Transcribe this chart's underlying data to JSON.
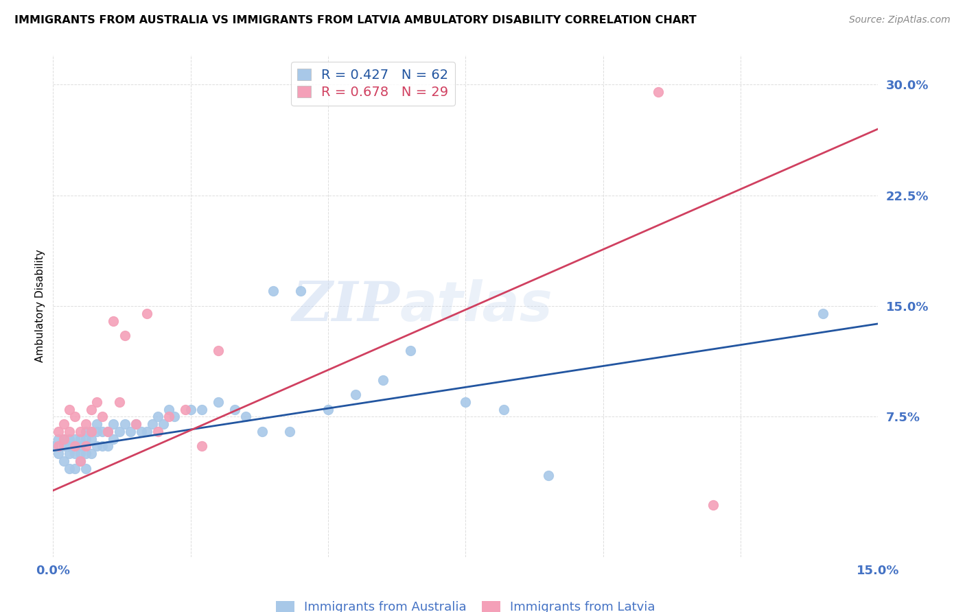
{
  "title": "IMMIGRANTS FROM AUSTRALIA VS IMMIGRANTS FROM LATVIA AMBULATORY DISABILITY CORRELATION CHART",
  "source": "Source: ZipAtlas.com",
  "ylabel": "Ambulatory Disability",
  "xlabel": "",
  "xlim": [
    0.0,
    0.15
  ],
  "ylim": [
    -0.02,
    0.32
  ],
  "yticks": [
    0.075,
    0.15,
    0.225,
    0.3
  ],
  "ytick_labels": [
    "7.5%",
    "15.0%",
    "22.5%",
    "30.0%"
  ],
  "xticks": [
    0.0,
    0.025,
    0.05,
    0.075,
    0.1,
    0.125,
    0.15
  ],
  "xtick_labels": [
    "0.0%",
    "",
    "",
    "",
    "",
    "",
    "15.0%"
  ],
  "legend_r_australia": "R = 0.427",
  "legend_n_australia": "N = 62",
  "legend_r_latvia": "R = 0.678",
  "legend_n_latvia": "N = 29",
  "color_australia": "#A8C8E8",
  "color_latvia": "#F4A0B8",
  "line_color_australia": "#2255A0",
  "line_color_latvia": "#D04060",
  "axis_color": "#4472C4",
  "grid_color": "#DDDDDD",
  "watermark_zip": "ZIP",
  "watermark_atlas": "atlas",
  "aus_line_x0": 0.0,
  "aus_line_y0": 0.052,
  "aus_line_x1": 0.15,
  "aus_line_y1": 0.138,
  "lat_line_x0": 0.0,
  "lat_line_y0": 0.025,
  "lat_line_x1": 0.15,
  "lat_line_y1": 0.27,
  "australia_x": [
    0.0,
    0.001,
    0.001,
    0.002,
    0.002,
    0.002,
    0.003,
    0.003,
    0.003,
    0.003,
    0.004,
    0.004,
    0.004,
    0.004,
    0.005,
    0.005,
    0.005,
    0.005,
    0.006,
    0.006,
    0.006,
    0.006,
    0.007,
    0.007,
    0.007,
    0.008,
    0.008,
    0.008,
    0.009,
    0.009,
    0.01,
    0.01,
    0.011,
    0.011,
    0.012,
    0.013,
    0.014,
    0.015,
    0.016,
    0.017,
    0.018,
    0.019,
    0.02,
    0.021,
    0.022,
    0.025,
    0.027,
    0.03,
    0.033,
    0.035,
    0.038,
    0.04,
    0.043,
    0.045,
    0.05,
    0.055,
    0.06,
    0.065,
    0.075,
    0.082,
    0.09,
    0.14
  ],
  "australia_y": [
    0.055,
    0.05,
    0.06,
    0.045,
    0.055,
    0.06,
    0.04,
    0.05,
    0.055,
    0.06,
    0.04,
    0.05,
    0.055,
    0.06,
    0.045,
    0.05,
    0.055,
    0.06,
    0.04,
    0.05,
    0.06,
    0.065,
    0.05,
    0.06,
    0.065,
    0.055,
    0.065,
    0.07,
    0.055,
    0.065,
    0.055,
    0.065,
    0.06,
    0.07,
    0.065,
    0.07,
    0.065,
    0.07,
    0.065,
    0.065,
    0.07,
    0.075,
    0.07,
    0.08,
    0.075,
    0.08,
    0.08,
    0.085,
    0.08,
    0.075,
    0.065,
    0.16,
    0.065,
    0.16,
    0.08,
    0.09,
    0.1,
    0.12,
    0.085,
    0.08,
    0.035,
    0.145
  ],
  "latvia_x": [
    0.001,
    0.001,
    0.002,
    0.002,
    0.003,
    0.003,
    0.004,
    0.004,
    0.005,
    0.005,
    0.006,
    0.006,
    0.007,
    0.007,
    0.008,
    0.009,
    0.01,
    0.011,
    0.012,
    0.013,
    0.015,
    0.017,
    0.019,
    0.021,
    0.024,
    0.027,
    0.03,
    0.11,
    0.12
  ],
  "latvia_y": [
    0.055,
    0.065,
    0.06,
    0.07,
    0.065,
    0.08,
    0.055,
    0.075,
    0.045,
    0.065,
    0.055,
    0.07,
    0.065,
    0.08,
    0.085,
    0.075,
    0.065,
    0.14,
    0.085,
    0.13,
    0.07,
    0.145,
    0.065,
    0.075,
    0.08,
    0.055,
    0.12,
    0.295,
    0.015
  ]
}
